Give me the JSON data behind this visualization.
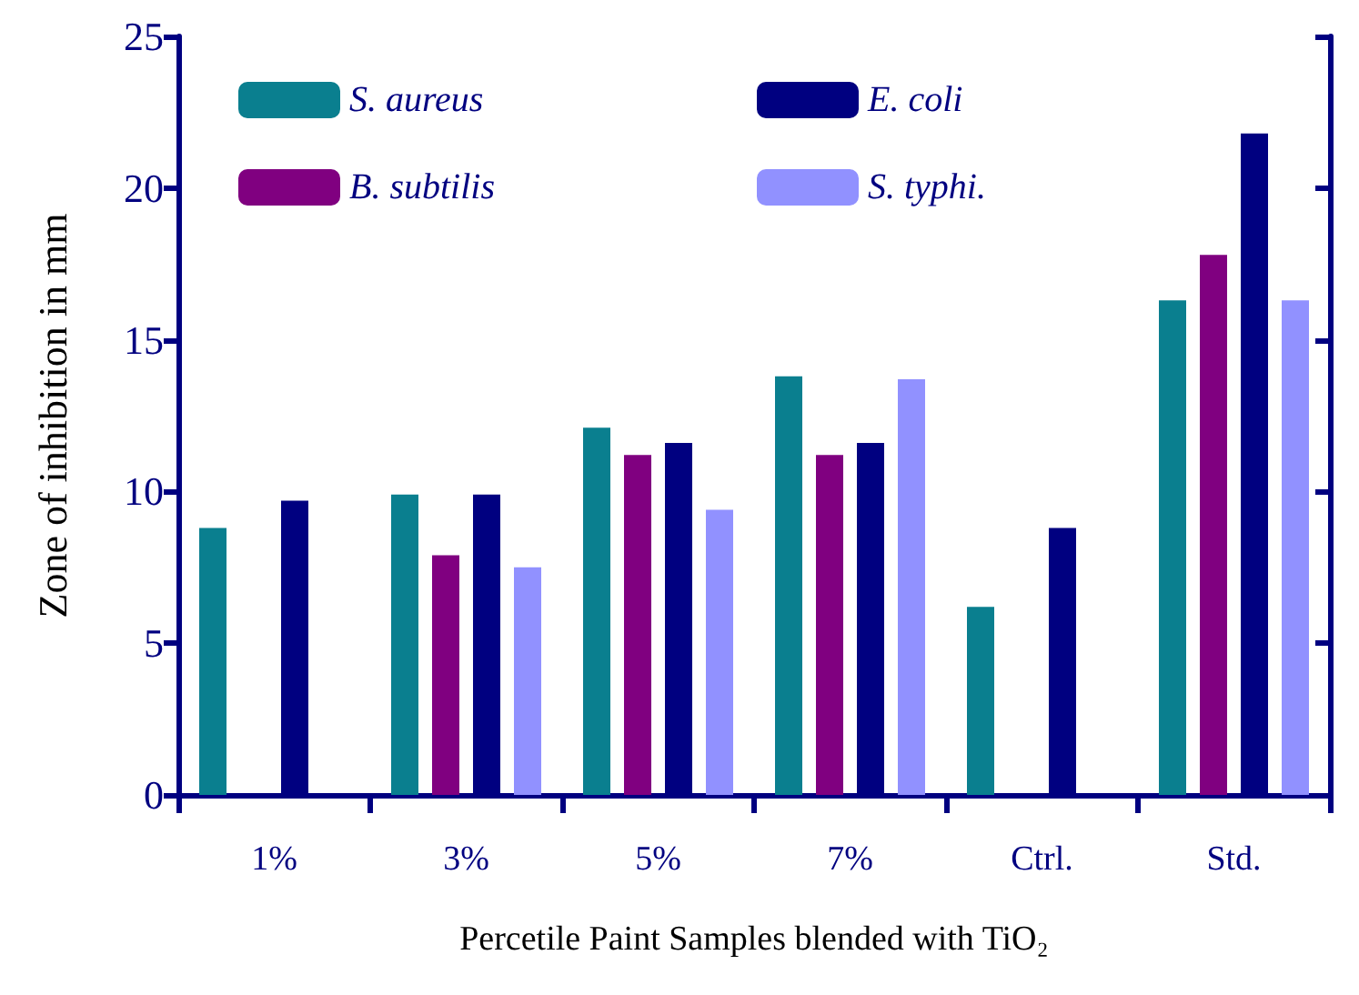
{
  "chart_data": {
    "type": "bar",
    "xlabel": "Percetile Paint Samples blended with TiO₂",
    "ylabel": "Zone of inhibition in mm",
    "categories": [
      "1%",
      "3%",
      "5%",
      "7%",
      "Ctrl.",
      "Std."
    ],
    "series": [
      {
        "name": "S. aureus",
        "color": "#0a7f8f",
        "values": [
          8.8,
          9.9,
          12.1,
          13.8,
          6.2,
          16.3
        ]
      },
      {
        "name": "B. subtilis",
        "color": "#800080",
        "values": [
          null,
          7.9,
          11.2,
          11.2,
          null,
          17.8
        ]
      },
      {
        "name": "E. coli",
        "color": "#000080",
        "values": [
          9.7,
          9.9,
          11.6,
          11.6,
          8.8,
          21.8
        ]
      },
      {
        "name": "S. typhi.",
        "color": "#9191ff",
        "values": [
          null,
          7.5,
          9.4,
          13.7,
          null,
          16.3
        ]
      }
    ],
    "ylim": [
      0,
      25
    ],
    "yticks": [
      0,
      5,
      10,
      15,
      20,
      25
    ],
    "grid": false,
    "legend": "top left"
  }
}
